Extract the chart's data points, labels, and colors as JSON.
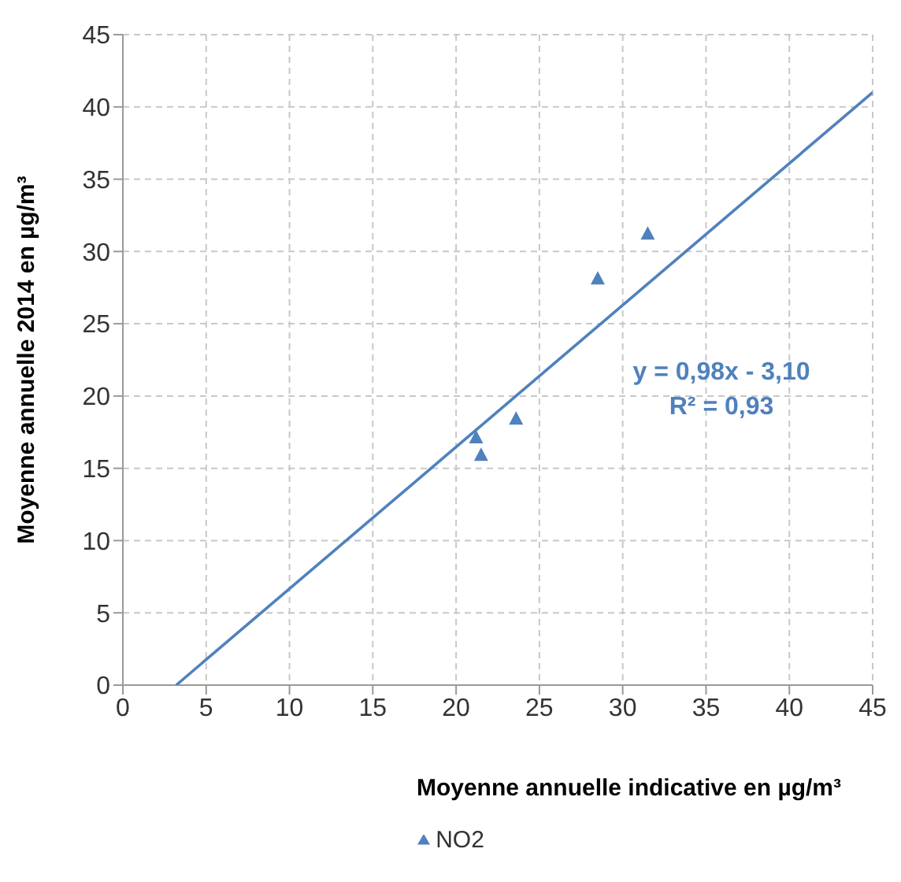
{
  "chart_data": {
    "type": "scatter",
    "xlabel": "Moyenne annuelle indicative en µg/m³",
    "ylabel": "Moyenne annuelle 2014  en µg/m³",
    "xlim": [
      0,
      45
    ],
    "xticks": [
      0,
      5,
      10,
      15,
      20,
      25,
      30,
      35,
      40,
      45
    ],
    "ylim": [
      0,
      45
    ],
    "yticks": [
      0,
      5,
      10,
      15,
      20,
      25,
      30,
      35,
      40,
      45
    ],
    "grid": true,
    "legend": "bottom",
    "marker": "triangle",
    "series": [
      {
        "name": "NO2",
        "color": "#4f81bd",
        "x": [
          21.2,
          21.5,
          23.6,
          28.5,
          31.5
        ],
        "values": [
          17.1,
          15.9,
          18.4,
          28.1,
          31.2
        ]
      },
      {
        "type": "line",
        "color": "#4f81bd",
        "marker": "none",
        "x": [
          3.2,
          45
        ],
        "values": [
          0,
          41
        ]
      }
    ],
    "annotations": [
      "y = 0,98x - 3,10",
      "R² = 0,93"
    ]
  }
}
